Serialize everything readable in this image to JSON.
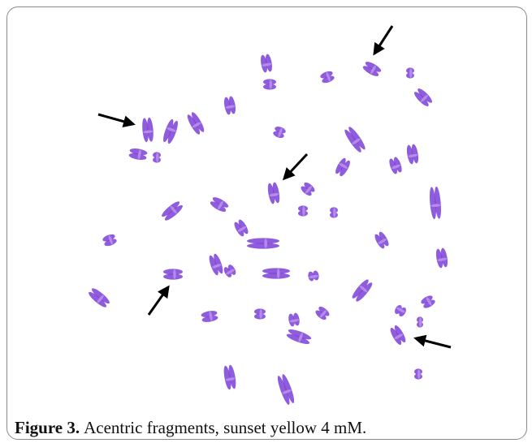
{
  "figure": {
    "label": "Figure 3.",
    "caption": "Acentric fragments, sunset yellow 4 mM."
  }
}
